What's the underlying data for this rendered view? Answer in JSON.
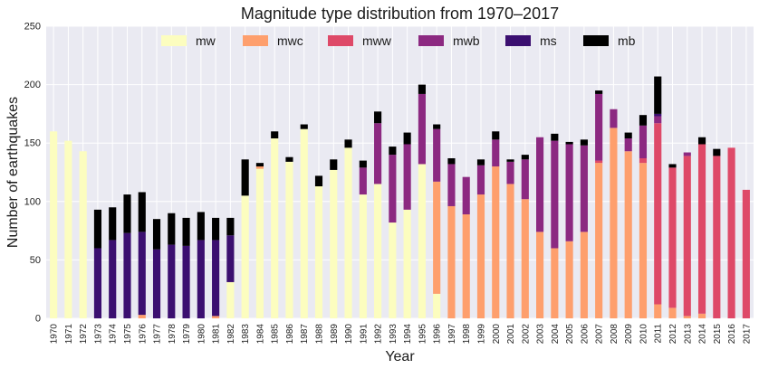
{
  "chart_data": {
    "type": "bar",
    "stacked": true,
    "title": "Magnitude type distribution from 1970–2017",
    "xlabel": "Year",
    "ylabel": "Number of earthquakes",
    "ylim": [
      0,
      250
    ],
    "yticks": [
      0,
      50,
      100,
      150,
      200,
      250
    ],
    "grid": true,
    "legend_position": "top-center",
    "categories": [
      "1970",
      "1971",
      "1972",
      "1973",
      "1974",
      "1975",
      "1976",
      "1977",
      "1978",
      "1979",
      "1980",
      "1981",
      "1982",
      "1983",
      "1984",
      "1985",
      "1986",
      "1987",
      "1988",
      "1989",
      "1990",
      "1991",
      "1992",
      "1993",
      "1994",
      "1995",
      "1996",
      "1997",
      "1998",
      "1999",
      "2000",
      "2001",
      "2002",
      "2003",
      "2004",
      "2005",
      "2006",
      "2007",
      "2008",
      "2009",
      "2010",
      "2011",
      "2012",
      "2013",
      "2014",
      "2015",
      "2016",
      "2017"
    ],
    "series": [
      {
        "name": "mw",
        "color": "#fcfdbf",
        "values": [
          160,
          152,
          143,
          0,
          0,
          0,
          0,
          0,
          0,
          0,
          0,
          0,
          31,
          105,
          128,
          154,
          134,
          162,
          113,
          127,
          146,
          106,
          115,
          82,
          93,
          132,
          21,
          0,
          0,
          0,
          0,
          0,
          0,
          0,
          0,
          0,
          0,
          0,
          0,
          0,
          0,
          0,
          0,
          0,
          0,
          0,
          0,
          0
        ]
      },
      {
        "name": "mwc",
        "color": "#fe9f6d",
        "values": [
          0,
          0,
          0,
          0,
          0,
          0,
          3,
          0,
          0,
          0,
          0,
          2,
          0,
          0,
          2,
          0,
          0,
          0,
          0,
          0,
          0,
          0,
          0,
          0,
          0,
          0,
          96,
          96,
          89,
          106,
          130,
          115,
          102,
          74,
          60,
          66,
          74,
          133,
          163,
          143,
          133,
          12,
          9,
          2,
          4,
          0,
          0,
          0
        ]
      },
      {
        "name": "mww",
        "color": "#de4968",
        "values": [
          0,
          0,
          0,
          0,
          0,
          0,
          0,
          0,
          0,
          0,
          0,
          0,
          0,
          0,
          0,
          0,
          0,
          0,
          0,
          0,
          0,
          0,
          0,
          0,
          0,
          0,
          0,
          0,
          0,
          0,
          0,
          0,
          0,
          0,
          0,
          0,
          0,
          2,
          0,
          0,
          4,
          155,
          120,
          137,
          145,
          139,
          146,
          110
        ]
      },
      {
        "name": "mwb",
        "color": "#8c2981",
        "values": [
          0,
          0,
          0,
          0,
          0,
          0,
          0,
          0,
          0,
          0,
          0,
          0,
          0,
          0,
          0,
          0,
          0,
          0,
          0,
          0,
          0,
          23,
          52,
          58,
          56,
          60,
          45,
          36,
          32,
          25,
          23,
          19,
          34,
          81,
          92,
          83,
          74,
          57,
          16,
          11,
          28,
          6,
          0,
          3,
          0,
          0,
          0,
          0
        ]
      },
      {
        "name": "ms",
        "color": "#3b0f70",
        "values": [
          0,
          0,
          0,
          60,
          67,
          73,
          71,
          59,
          63,
          62,
          67,
          65,
          40,
          0,
          0,
          0,
          0,
          0,
          0,
          0,
          0,
          0,
          0,
          0,
          0,
          0,
          0,
          0,
          0,
          0,
          0,
          0,
          0,
          0,
          0,
          0,
          0,
          0,
          0,
          0,
          0,
          2,
          0,
          0,
          0,
          0,
          0,
          0
        ]
      },
      {
        "name": "mb",
        "color": "#000000",
        "values": [
          0,
          0,
          0,
          33,
          28,
          33,
          34,
          26,
          27,
          24,
          24,
          19,
          15,
          31,
          3,
          6,
          4,
          4,
          9,
          9,
          7,
          6,
          10,
          7,
          10,
          8,
          4,
          5,
          0,
          5,
          7,
          2,
          4,
          0,
          6,
          2,
          5,
          3,
          0,
          5,
          9,
          32,
          3,
          0,
          6,
          6,
          0,
          0
        ]
      }
    ]
  }
}
